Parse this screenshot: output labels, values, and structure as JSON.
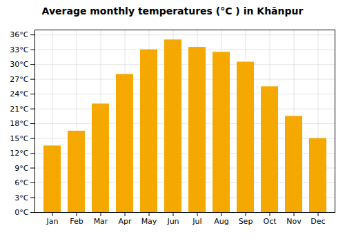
{
  "chart_data": {
    "type": "bar",
    "title": "Average monthly temperatures (°C ) in Khānpur",
    "categories": [
      "Jan",
      "Feb",
      "Mar",
      "Apr",
      "May",
      "Jun",
      "Jul",
      "Aug",
      "Sep",
      "Oct",
      "Nov",
      "Dec"
    ],
    "values": [
      13.5,
      16.5,
      22.0,
      28.0,
      33.0,
      35.0,
      33.5,
      32.5,
      30.5,
      25.5,
      19.5,
      15.0
    ],
    "color": "#F5A800",
    "ylim": [
      0,
      37
    ],
    "yticks": [
      {
        "value": 0,
        "label": "0°C"
      },
      {
        "value": 3,
        "label": "3°C"
      },
      {
        "value": 6,
        "label": "6°C"
      },
      {
        "value": 9,
        "label": "9°C"
      },
      {
        "value": 12,
        "label": "12°C"
      },
      {
        "value": 15,
        "label": "15°C"
      },
      {
        "value": 18,
        "label": "18°C"
      },
      {
        "value": 21,
        "label": "21°C"
      },
      {
        "value": 24,
        "label": "24°C"
      },
      {
        "value": 27,
        "label": "27°C"
      },
      {
        "value": 30,
        "label": "30°C"
      },
      {
        "value": 33,
        "label": "33°C"
      },
      {
        "value": 36,
        "label": "36°C"
      }
    ],
    "grid": true
  }
}
